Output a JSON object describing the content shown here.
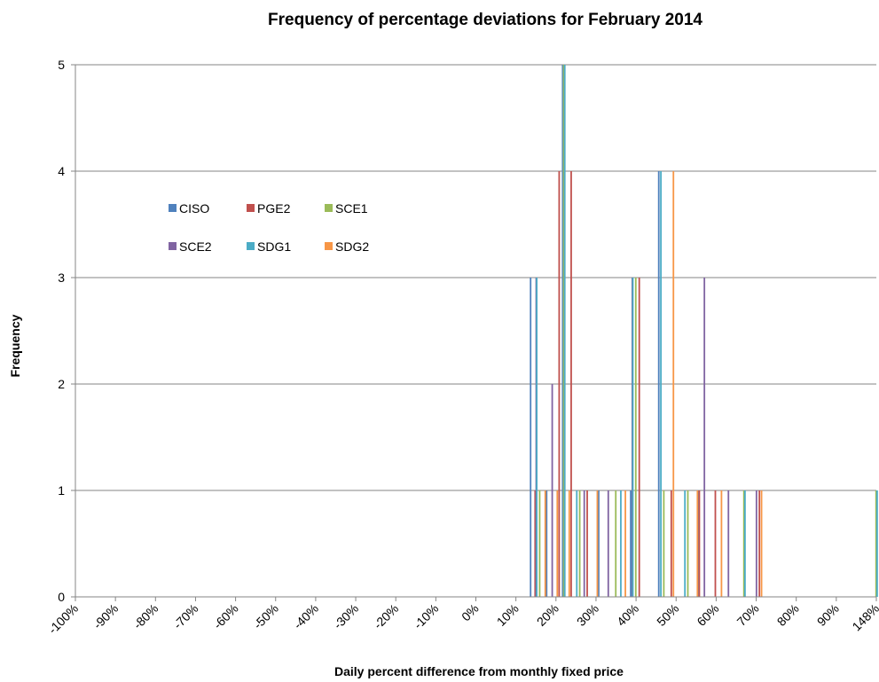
{
  "chart_data": {
    "type": "bar",
    "title": "Frequency of percentage deviations for February 2014",
    "x_label": "Daily percent difference from monthly fixed price",
    "y_label": "Frequency",
    "xlim": [
      -100,
      148
    ],
    "xticks": [
      {
        "value": -100,
        "label": "-100%"
      },
      {
        "value": -90,
        "label": "-90%"
      },
      {
        "value": -80,
        "label": "-80%"
      },
      {
        "value": -70,
        "label": "-70%"
      },
      {
        "value": -60,
        "label": "-60%"
      },
      {
        "value": -50,
        "label": "-50%"
      },
      {
        "value": -40,
        "label": "-40%"
      },
      {
        "value": -30,
        "label": "-30%"
      },
      {
        "value": -20,
        "label": "-20%"
      },
      {
        "value": -10,
        "label": "-10%"
      },
      {
        "value": 0,
        "label": "0%"
      },
      {
        "value": 10,
        "label": "10%"
      },
      {
        "value": 20,
        "label": "20%"
      },
      {
        "value": 30,
        "label": "30%"
      },
      {
        "value": 40,
        "label": "40%"
      },
      {
        "value": 50,
        "label": "50%"
      },
      {
        "value": 60,
        "label": "60%"
      },
      {
        "value": 70,
        "label": "70%"
      },
      {
        "value": 80,
        "label": "80%"
      },
      {
        "value": 90,
        "label": "90%"
      },
      {
        "value": 148,
        "label": "148%"
      }
    ],
    "ylim": [
      0,
      5
    ],
    "yticks": [
      0,
      1,
      2,
      3,
      4,
      5
    ],
    "grid": true,
    "legend": "upper left",
    "series": [
      {
        "name": "CISO",
        "color": "#4f81bd",
        "x": [
          14,
          18,
          22,
          31,
          39,
          46,
          56
        ],
        "values": [
          3,
          1,
          5,
          1,
          1,
          4,
          1
        ]
      },
      {
        "name": "PGE2",
        "color": "#c0504d",
        "x": [
          15,
          21,
          24,
          28,
          41,
          49,
          56,
          60,
          71
        ],
        "values": [
          1,
          4,
          4,
          1,
          3,
          1,
          1,
          1,
          1
        ]
      },
      {
        "name": "SCE1",
        "color": "#9bbb59",
        "x": [
          16,
          22,
          26,
          35,
          40,
          47,
          53,
          67,
          148
        ],
        "values": [
          1,
          5,
          1,
          1,
          3,
          1,
          1,
          1,
          1
        ]
      },
      {
        "name": "SCE2",
        "color": "#8064a2",
        "x": [
          15,
          19,
          27,
          33,
          39,
          57,
          63,
          70
        ],
        "values": [
          3,
          2,
          1,
          1,
          3,
          3,
          1,
          1
        ]
      },
      {
        "name": "SDG1",
        "color": "#4bacc6",
        "x": [
          15,
          22,
          25,
          36,
          39,
          46,
          52,
          67,
          148
        ],
        "values": [
          3,
          5,
          1,
          1,
          3,
          4,
          1,
          1,
          1
        ]
      },
      {
        "name": "SDG2",
        "color": "#f79646",
        "x": [
          17,
          20,
          23,
          30,
          37,
          49,
          55,
          61,
          71
        ],
        "values": [
          1,
          1,
          1,
          1,
          1,
          4,
          1,
          1,
          1
        ]
      }
    ]
  }
}
